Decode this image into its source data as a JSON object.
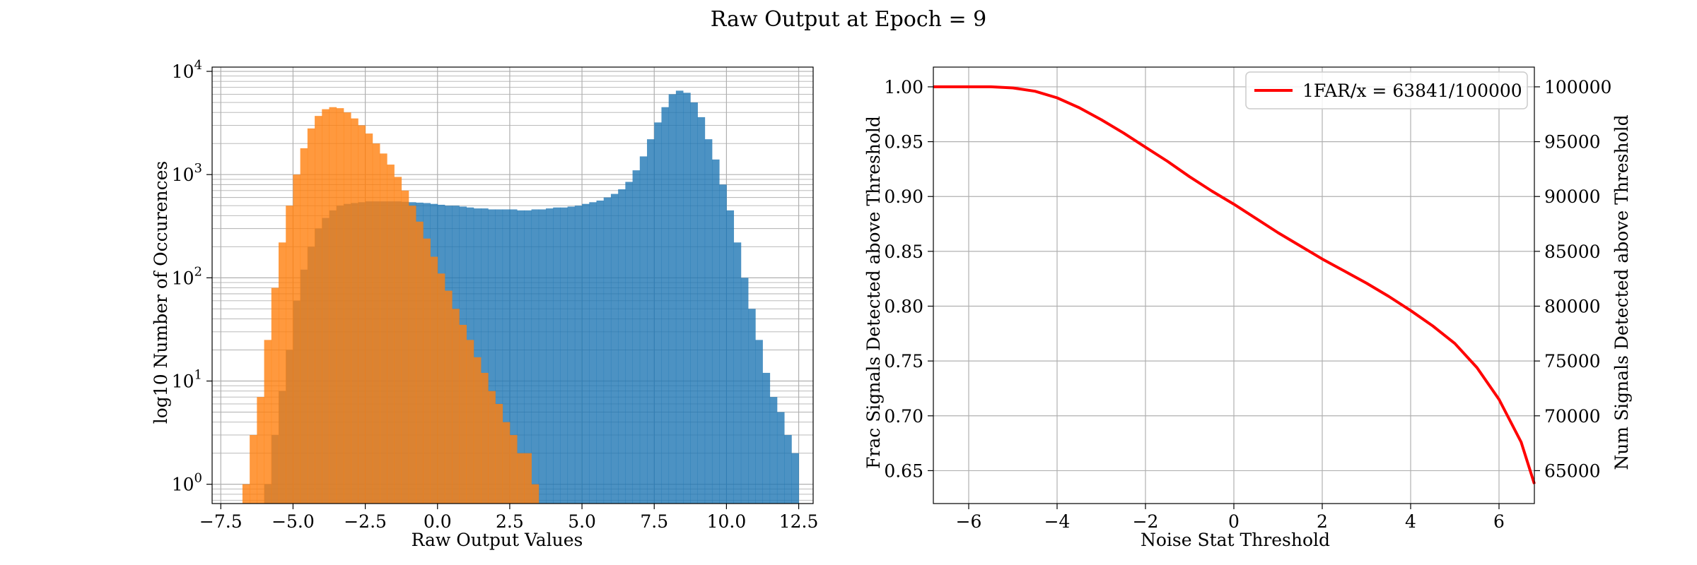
{
  "figure": {
    "title": "Raw Output at Epoch = 9"
  },
  "chart_data": [
    {
      "type": "histogram",
      "xlabel": "Raw Output Values",
      "ylabel": "log10 Number of Occurences",
      "xlim": [
        -7.8,
        13.0
      ],
      "ylim": [
        0.65,
        11000
      ],
      "yscale": "log",
      "grid": true,
      "xticks": [
        "−7.5",
        "−5.0",
        "−2.5",
        "0.0",
        "2.5",
        "5.0",
        "7.5",
        "10.0",
        "12.5"
      ],
      "xtick_values": [
        -7.5,
        -5.0,
        -2.5,
        0.0,
        2.5,
        5.0,
        7.5,
        10.0,
        12.5
      ],
      "yticks": [
        {
          "base": "10",
          "exp": "0",
          "value": 1
        },
        {
          "base": "10",
          "exp": "1",
          "value": 10
        },
        {
          "base": "10",
          "exp": "2",
          "value": 100
        },
        {
          "base": "10",
          "exp": "3",
          "value": 1000
        },
        {
          "base": "10",
          "exp": "4",
          "value": 10000
        }
      ],
      "bin_width": 0.25,
      "series": [
        {
          "color": "#1f77b4",
          "bin_start": -6.0,
          "values": [
            1,
            3,
            8,
            20,
            60,
            120,
            200,
            300,
            380,
            450,
            500,
            520,
            530,
            540,
            550,
            550,
            550,
            550,
            550,
            545,
            540,
            535,
            530,
            520,
            510,
            500,
            500,
            490,
            480,
            470,
            470,
            460,
            460,
            460,
            460,
            450,
            450,
            460,
            460,
            470,
            480,
            480,
            490,
            500,
            520,
            540,
            560,
            600,
            650,
            720,
            850,
            1100,
            1500,
            2200,
            3200,
            4500,
            6000,
            6500,
            6200,
            5000,
            3600,
            2200,
            1400,
            800,
            450,
            220,
            100,
            50,
            25,
            12,
            7,
            5,
            3,
            2
          ]
        },
        {
          "color": "#ff7f0e",
          "bin_start": -6.75,
          "values": [
            1,
            3,
            7,
            25,
            80,
            220,
            500,
            1000,
            1800,
            2800,
            3700,
            4300,
            4500,
            4400,
            4000,
            3500,
            3000,
            2500,
            2000,
            1600,
            1250,
            950,
            700,
            500,
            350,
            240,
            160,
            110,
            75,
            50,
            35,
            25,
            17,
            12,
            8,
            6,
            4,
            3,
            2,
            2,
            1
          ]
        }
      ]
    },
    {
      "type": "line",
      "xlabel": "Noise Stat Threshold",
      "ylabel": "Frac Signals Detected above Threshold",
      "ylabel_right": "Num Signals Detected above Threshold",
      "xlim": [
        -6.8,
        6.8
      ],
      "ylim": [
        0.62,
        1.018
      ],
      "ylim_right": [
        62000,
        101800
      ],
      "grid": true,
      "legend_position": "upper-right",
      "xticks": [
        "−6",
        "−4",
        "−2",
        "0",
        "2",
        "4",
        "6"
      ],
      "xtick_values": [
        -6,
        -4,
        -2,
        0,
        2,
        4,
        6
      ],
      "yticks": [
        "0.65",
        "0.70",
        "0.75",
        "0.80",
        "0.85",
        "0.90",
        "0.95",
        "1.00"
      ],
      "ytick_values": [
        0.65,
        0.7,
        0.75,
        0.8,
        0.85,
        0.9,
        0.95,
        1.0
      ],
      "yticks_right": [
        "65000",
        "70000",
        "75000",
        "80000",
        "85000",
        "90000",
        "95000",
        "100000"
      ],
      "ytick_right_values": [
        65000,
        70000,
        75000,
        80000,
        85000,
        90000,
        95000,
        100000
      ],
      "series": [
        {
          "name": "1FAR/x = 63841/100000",
          "color": "#ff0000",
          "x": [
            -6.8,
            -6.0,
            -5.5,
            -5.0,
            -4.5,
            -4.0,
            -3.5,
            -3.0,
            -2.5,
            -2.0,
            -1.5,
            -1.0,
            -0.5,
            0.0,
            0.5,
            1.0,
            1.5,
            2.0,
            2.5,
            3.0,
            3.5,
            4.0,
            4.5,
            5.0,
            5.5,
            6.0,
            6.5,
            6.8
          ],
          "y": [
            1.0,
            1.0,
            1.0,
            0.999,
            0.996,
            0.99,
            0.981,
            0.97,
            0.958,
            0.945,
            0.932,
            0.918,
            0.905,
            0.893,
            0.88,
            0.867,
            0.855,
            0.843,
            0.832,
            0.821,
            0.809,
            0.796,
            0.782,
            0.766,
            0.744,
            0.715,
            0.676,
            0.638
          ]
        }
      ]
    }
  ]
}
